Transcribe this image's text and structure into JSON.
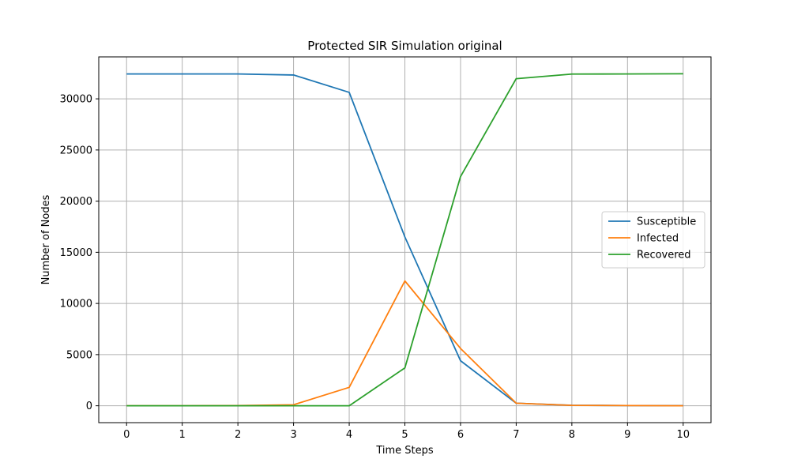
{
  "chart_data": {
    "type": "line",
    "title": "Protected SIR Simulation original",
    "xlabel": "Time Steps",
    "ylabel": "Number of Nodes",
    "x": [
      0,
      1,
      2,
      3,
      4,
      5,
      6,
      7,
      8,
      9,
      10
    ],
    "xlim": [
      -0.5,
      10.5
    ],
    "ylim": [
      -1650,
      34100
    ],
    "xticks": [
      "0",
      "1",
      "2",
      "3",
      "4",
      "5",
      "6",
      "7",
      "8",
      "9",
      "10"
    ],
    "yticks": [
      0,
      5000,
      10000,
      15000,
      20000,
      25000,
      30000
    ],
    "grid": true,
    "legend_position": "center-right",
    "series": [
      {
        "name": "Susceptible",
        "color": "#1f77b4",
        "values": [
          32430,
          32430,
          32430,
          32330,
          30630,
          16500,
          4400,
          250,
          50,
          20,
          10
        ]
      },
      {
        "name": "Infected",
        "color": "#ff7f0e",
        "values": [
          0,
          0,
          20,
          100,
          1800,
          12200,
          5600,
          250,
          40,
          20,
          0
        ]
      },
      {
        "name": "Recovered",
        "color": "#2ca02c",
        "values": [
          0,
          0,
          0,
          0,
          0,
          3700,
          22400,
          31970,
          32420,
          32430,
          32450
        ]
      }
    ]
  }
}
